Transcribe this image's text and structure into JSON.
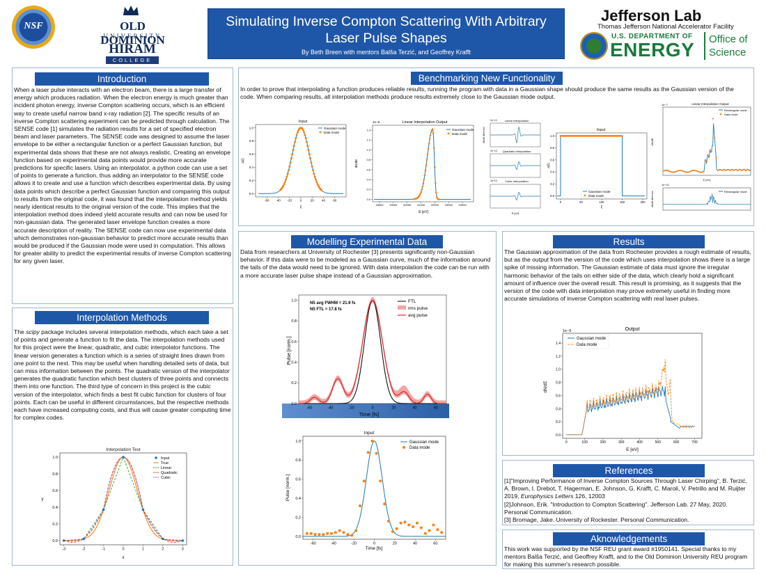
{
  "header": {
    "title": "Simulating Inverse Compton Scattering With Arbitrary Laser Pulse Shapes",
    "subtitle": "By Beth Breen with mentors Balša Terzić, and Geoffrey Krafft",
    "logos": {
      "nsf": "NSF",
      "odu_name": "OLD DOMINION",
      "odu_univ": "UNIVERSITY",
      "hiram": "HIRAM",
      "hiram_college": "COLLEGE",
      "jlab": "Jefferson Lab",
      "jlab_sub": "Thomas Jefferson National Accelerator Facility",
      "doe_line1": "U.S. DEPARTMENT OF",
      "doe_line2": "ENERGY",
      "office": "Office of",
      "science": "Science"
    }
  },
  "intro": {
    "heading": "Introduction",
    "text": "When a laser pulse interacts with an electron beam, there is a large transfer of energy which produces radiation. When the electron energy is much greater than incident photon energy, inverse Compton scattering occurs, which is an efficient way to create useful narrow band x-ray radiation [2]. The specific results of an inverse Compton scattering experiment can be predicted through calculation. The SENSE code [1] simulates the radiation results for a set of specified electron beam and laser parameters. The SENSE code was designed to assume the laser envelope to be either a rectangular function or a perfect Gaussian function, but experimental data shows that these are not always realistic. Creating an envelope function based on experimental data points would provide more accurate predictions for specific lasers. Using an interpolator, a python code can use a set of points to generate a function, thus adding an interpolator to the SENSE code allows it to create and use a function which describes experimental data. By using data points which describe a perfect Gaussian function and comparing this output to results from the original code, it was found that the interpolation method yields nearly identical results to the original version of the code. This implies that the interpolation method does indeed yield accurate results and can now be used for non-gaussian data. The generated laser envelope function creates a more accurate description of reality. The SENSE code can now use experimental data which demonstrates non-gaussian behavior to predict more accurate results than would be produced if the Gaussian mode were used in computation. This allows for greater ability to predict the experimental results of inverse Compton scattering for any given laser."
  },
  "interp": {
    "heading": "Interpolation Methods",
    "text_pre": "The ",
    "text_em": "scipy",
    "text_post": " package includes several interpolation methods, which each take a set of points and generate a function to fit the data. The interpolation methods used for this project were the linear, quadratic, and cubic interpolator functions. The linear version generates a function which is a series of straight lines drawn from one point to the next. This may be useful when handling detailed sets of data, but can miss information between the points. The quadratic version of the interpolator generates the quadratic function which best clusters of three points and connects them into one function. The third type of concern in this project is the cubic version of the interpolator, which finds a best fit cubic function for clusters of four points. Each can be useful in different circumstances, but the respective methods each have increased computing costs, and thus will cause greater computing time for complex codes."
  },
  "bench": {
    "heading": "Benchmarking New Functionality",
    "text": "In order to prove that interpolating a function produces reliable results, running the program with data in a Gaussian shape should produce the same results as the Gaussian version of the code. When comparing results, all interpolation methods produce results extremely close to the Gaussian mode output."
  },
  "model": {
    "heading": "Modelling Experimental Data",
    "text": "Data from researchers at University of Rochester [3] presents significantly non-Gaussian behavior. If this data were to be modeled as a Gaussian curve, much of the information around the tails of the data would need to be ignored. With data interpolation the code can be run with a more accurate laser pulse shape instead of a Gaussian approximation."
  },
  "results": {
    "heading": "Results",
    "text": "The Gaussian approximation of the data from Rochester provides a rough estimate of results, but as the output from the version of the code which uses interpolation shows there is a large spike of missing information. The Gaussian estimate of data must ignore the irregular harmonic behavior of the tails on either side of the data, which clearly hold a significant amount of influence over the overall result. This result is promising, as it suggests that the version of the code with data interpolation may prove extremely useful in finding more accurate simulations of inverse Compton scattering with real laser pulses."
  },
  "references": {
    "heading": "References",
    "r1_pre": "[1]\"Improving Performance of Inverse Compton Sources Through Laser Chirping\", B. Terzić, A. Brown, I. Drebot, T. Hagerman, E. Johnson, G. Krafft, C. Maroli, V. Petrillo and M. Ruijter 2019, ",
    "r1_em": "Europhysics Letters",
    "r1_post": " 126, 12003",
    "r2": "[2]Johnson, Erik. \"Introduction to Compton Scattering\". Jefferson Lab. 27 May, 2020. Personal Communication.",
    "r3": " [3] Bromage, Jake. University of Rockester. Personal Communication."
  },
  "ack": {
    "heading": "Aknowledgements",
    "text": "This work was supported by the NSF REU grant award #1950141. Special thanks to my mentors Balša Terzić, and Geoffrey Krafft, and to the Old Dominion University REU program for making this summer's research possible."
  },
  "colors": {
    "blue": "#1f77b4",
    "orange": "#ff7f0e",
    "green": "#2ca02c",
    "red": "#d62728",
    "purple": "#9467bd",
    "heading": "#1f57a8"
  },
  "chart_data": [
    {
      "id": "interp_test",
      "type": "line",
      "title": "Interpolation Test",
      "xlabel": "x",
      "ylabel": "y",
      "xlim": [
        -3,
        3
      ],
      "ylim": [
        0,
        1
      ],
      "xticks": [
        -3,
        -2,
        -1,
        0,
        1,
        2,
        3
      ],
      "yticks": [
        0.0,
        0.2,
        0.4,
        0.6,
        0.8,
        1.0
      ],
      "points": {
        "name": "Input",
        "x": [
          -3,
          -2,
          -1,
          0,
          1,
          2,
          3
        ],
        "y": [
          0.0,
          0.02,
          0.37,
          1.0,
          0.37,
          0.02,
          0.0
        ]
      },
      "series": [
        {
          "name": "True"
        },
        {
          "name": "Linear"
        },
        {
          "name": "Quadratic"
        },
        {
          "name": "Cubic"
        }
      ],
      "legend": "top-right"
    },
    {
      "id": "bench_input",
      "type": "line",
      "title": "Input",
      "xlabel": "ξ",
      "ylabel": "a(ξ)",
      "xlim": [
        -80,
        80
      ],
      "ylim": [
        0,
        1
      ],
      "xticks": [
        -60,
        -40,
        -20,
        0,
        20,
        40,
        60
      ],
      "yticks": [
        0.0,
        0.2,
        0.4,
        0.6,
        0.8,
        1.0
      ],
      "series": [
        {
          "name": "Gaussian mode"
        },
        {
          "name": "Data mode"
        }
      ],
      "legend": "top-right"
    },
    {
      "id": "bench_linear",
      "type": "line",
      "title": "Linear Interpolation Output",
      "scale_label": "1e−8",
      "xlabel": "E [eV]",
      "ylabel": "dN/dE",
      "xlim": [
        17500,
        24800
      ],
      "ylim": [
        0,
        1.5
      ],
      "xticks": [
        18000,
        19000,
        20000,
        21000,
        22000,
        23000,
        24000
      ],
      "yticks": [
        0.0,
        0.2,
        0.4,
        0.6,
        0.8,
        1.0,
        1.2,
        1.4
      ],
      "series": [
        {
          "name": "Gaussian mode"
        },
        {
          "name": "Data mode"
        }
      ],
      "legend": "top-right"
    },
    {
      "id": "bench_diffs",
      "type": "line",
      "subplots": [
        "Linear Interpolation",
        "Quadratic Interpolation",
        "Cubic Interpolation"
      ],
      "scale_label": "1e−12",
      "xlabel": "E [eV]",
      "ylabel": "dN/dE difference"
    },
    {
      "id": "bench_rect_input",
      "type": "line",
      "title": "Input",
      "xlabel": "ξ",
      "ylabel": "a(ξ)",
      "xlim": [
        -10,
        210
      ],
      "ylim": [
        0,
        1
      ],
      "xticks": [
        0,
        50,
        100,
        150,
        200
      ],
      "yticks": [
        0.0,
        0.2,
        0.4,
        0.6,
        0.8,
        1.0
      ],
      "series": [
        {
          "name": "Gaussian mode"
        },
        {
          "name": "Data mode"
        }
      ],
      "legend": "bottom-right"
    },
    {
      "id": "bench_rect_output",
      "type": "line",
      "title": "Linear Interpolation Output",
      "scale_label": "1e−7",
      "xlabel": "E [eV]",
      "ylabel": "dN/dE",
      "series": [
        {
          "name": "Rectangular mode"
        },
        {
          "name": "Data mode"
        }
      ],
      "legend": "top-right",
      "sub_legend": "Rectangular mode",
      "sub_ylabel": "dN/dE difference",
      "sub_scale": "1e−10"
    },
    {
      "id": "rochester_pulse",
      "type": "line",
      "xlabel": "Time [fs]",
      "ylabel": "Pulse [norm.]",
      "xlim": [
        -70,
        70
      ],
      "ylim": [
        0,
        1.05
      ],
      "xticks": [
        -60,
        -40,
        -20,
        0,
        20,
        40,
        60
      ],
      "yticks": [
        0,
        0.2,
        0.4,
        0.6,
        0.8,
        1
      ],
      "annotations": [
        "N5 avg FWHM = 21.9 fs",
        "N5 FTL = 17.8 fs"
      ],
      "series": [
        {
          "name": "FTL"
        },
        {
          "name": "rms pulse"
        },
        {
          "name": "avg pulse"
        }
      ],
      "legend": "top-right"
    },
    {
      "id": "model_input",
      "type": "scatter",
      "title": "Input",
      "xlabel": "Time [fs]",
      "ylabel": "Pulse [norm.]",
      "xlim": [
        -70,
        70
      ],
      "ylim": [
        0,
        1.05
      ],
      "xticks": [
        -60,
        -40,
        -20,
        0,
        20,
        40,
        60
      ],
      "yticks": [
        0.0,
        0.2,
        0.4,
        0.6,
        0.8,
        1.0
      ],
      "points": {
        "name": "Data mode",
        "x": [
          -66,
          -62,
          -58,
          -54,
          -50,
          -46,
          -42,
          -38,
          -34,
          -30,
          -26,
          -22,
          -18,
          -14,
          -10,
          -6,
          -2,
          2,
          6,
          10,
          14,
          18,
          22,
          26,
          30,
          34,
          38,
          42,
          46,
          50,
          54,
          58,
          62,
          66
        ],
        "y": [
          0.03,
          0.03,
          0.02,
          0.02,
          0.02,
          0.03,
          0.03,
          0.04,
          0.06,
          0.04,
          0.02,
          0.01,
          0.06,
          0.32,
          0.58,
          0.88,
          1.0,
          0.87,
          0.58,
          0.34,
          0.16,
          0.05,
          0.08,
          0.14,
          0.15,
          0.12,
          0.1,
          0.14,
          0.09,
          0.03,
          0.06,
          0.12,
          0.07,
          0.04
        ]
      },
      "series": [
        {
          "name": "Gaussian mode"
        },
        {
          "name": "Data mode"
        }
      ],
      "legend": "top-right"
    },
    {
      "id": "results_output",
      "type": "line",
      "title": "Output",
      "scale_label": "1e−5",
      "xlabel": "E [eV]",
      "ylabel": "dN/dE",
      "xlim": [
        -20,
        740
      ],
      "ylim": [
        -0.05,
        1.55
      ],
      "xticks": [
        0,
        100,
        200,
        300,
        400,
        500,
        600,
        700
      ],
      "yticks": [
        0.0,
        0.2,
        0.4,
        0.6,
        0.8,
        1.0,
        1.2,
        1.4
      ],
      "series": [
        {
          "name": "Gaussian mode"
        },
        {
          "name": "Data mode"
        }
      ],
      "legend": "top-left"
    }
  ]
}
